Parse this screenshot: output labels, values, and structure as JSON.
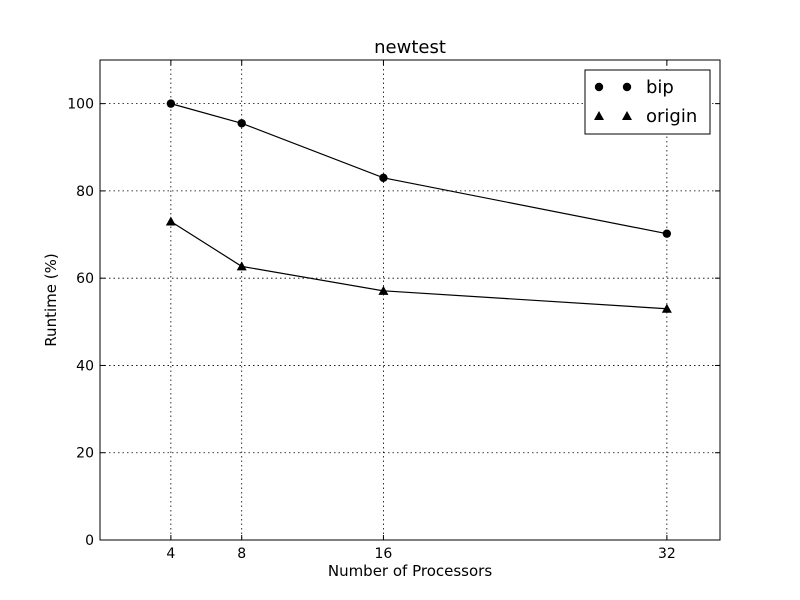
{
  "chart_data": {
    "type": "line",
    "title": "newtest",
    "xlabel": "Number of Processors",
    "ylabel": "Runtime (%)",
    "x": [
      4,
      8,
      16,
      32
    ],
    "xlim": [
      0,
      35
    ],
    "ylim": [
      0,
      110
    ],
    "xticks": [
      4,
      8,
      16,
      32
    ],
    "yticks": [
      0,
      20,
      40,
      60,
      80,
      100
    ],
    "grid": true,
    "legend_position": "top-right",
    "series": [
      {
        "name": "bip",
        "marker": "circle",
        "color": "#000000",
        "values": [
          100,
          95.5,
          83,
          70.2
        ]
      },
      {
        "name": "origin",
        "marker": "triangle",
        "color": "#000000",
        "values": [
          73,
          62.7,
          57.1,
          53
        ]
      }
    ]
  }
}
